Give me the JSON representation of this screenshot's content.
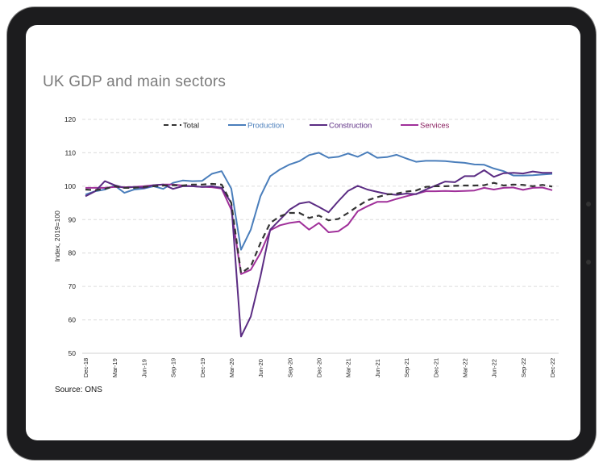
{
  "title": "UK GDP and main sectors",
  "source": "Source: ONS",
  "chart_data": {
    "type": "line",
    "title": "",
    "ylabel": "Index, 2019=100",
    "xlabel": "",
    "ylim": [
      50,
      120
    ],
    "yticks": [
      50,
      60,
      70,
      80,
      90,
      100,
      110,
      120
    ],
    "grid": "horizontal dashed",
    "legend_position": "top",
    "x_start": "Dec-18",
    "x_end": "Dec-22",
    "x_frequency": "monthly",
    "xtick_labels": [
      "Dec-18",
      "Mar-19",
      "Jun-19",
      "Sep-19",
      "Dec-19",
      "Mar-20",
      "Jun-20",
      "Sep-20",
      "Dec-20",
      "Mar-21",
      "Jun-21",
      "Sep-21",
      "Dec-21",
      "Mar-22",
      "Jun-22",
      "Sep-22",
      "Dec-22"
    ],
    "series": [
      {
        "name": "Total",
        "color": "#333333",
        "style": "dashed",
        "values": [
          99,
          98.8,
          99.2,
          100,
          99.5,
          99.5,
          99.8,
          100,
          100.2,
          100.3,
          100.2,
          100.5,
          100.5,
          100.7,
          100.5,
          95,
          74,
          76,
          83,
          89,
          91,
          92,
          92,
          90.5,
          91.2,
          89.8,
          90.2,
          92,
          94,
          95.8,
          96.7,
          97.5,
          97.8,
          98.4,
          98.7,
          99.8,
          100,
          100,
          100.1,
          100.2,
          100.2,
          100.3,
          101,
          100.2,
          100.5,
          100.4,
          100,
          100.4,
          99.9
        ]
      },
      {
        "name": "Production",
        "color": "#4a7ebb",
        "style": "solid",
        "values": [
          97.5,
          98.5,
          99,
          100.2,
          98,
          99,
          99.3,
          100,
          99.2,
          101,
          101.7,
          101.5,
          101.6,
          103.7,
          104.5,
          99.3,
          81,
          87,
          97,
          103,
          105,
          106.5,
          107.5,
          109.3,
          110,
          108.5,
          108.8,
          109.8,
          108.8,
          110.2,
          108.5,
          108.7,
          109.4,
          108.3,
          107.3,
          107.6,
          107.6,
          107.5,
          107.2,
          107,
          106.5,
          106.4,
          105.3,
          104.5,
          103.2,
          103.2,
          103.3,
          103.5,
          103.7
        ]
      },
      {
        "name": "Construction",
        "color": "#5b2c83",
        "style": "solid",
        "values": [
          97,
          98.5,
          101.5,
          100.3,
          99.5,
          99.8,
          99.5,
          100.3,
          100.5,
          99.2,
          100,
          100,
          99.8,
          100,
          99.5,
          95,
          55,
          61,
          73,
          87,
          90,
          93,
          94.8,
          95.3,
          93.8,
          92.2,
          95.5,
          98.6,
          100.1,
          99,
          98.3,
          97.7,
          97.4,
          97.8,
          97.6,
          99,
          100.2,
          101.4,
          101.2,
          103,
          103,
          104.8,
          102.8,
          103.9,
          104,
          103.8,
          104.4,
          104,
          104
        ]
      },
      {
        "name": "Services",
        "color": "#a0309a",
        "style": "solid",
        "values": [
          99.5,
          99.5,
          99.5,
          99.8,
          99.7,
          99.8,
          100,
          100.3,
          100.5,
          100.5,
          100.2,
          100,
          99.8,
          99.7,
          99.3,
          93,
          73.7,
          75,
          80,
          86.8,
          88.3,
          89,
          89.4,
          87,
          89,
          86.2,
          86.5,
          88.5,
          92.5,
          94,
          95.3,
          95.3,
          96.2,
          97,
          97.7,
          98.5,
          98.5,
          98.6,
          98.5,
          98.6,
          98.7,
          99.5,
          99,
          99.5,
          99.6,
          98.9,
          99.5,
          99.6,
          98.8
        ]
      }
    ]
  }
}
